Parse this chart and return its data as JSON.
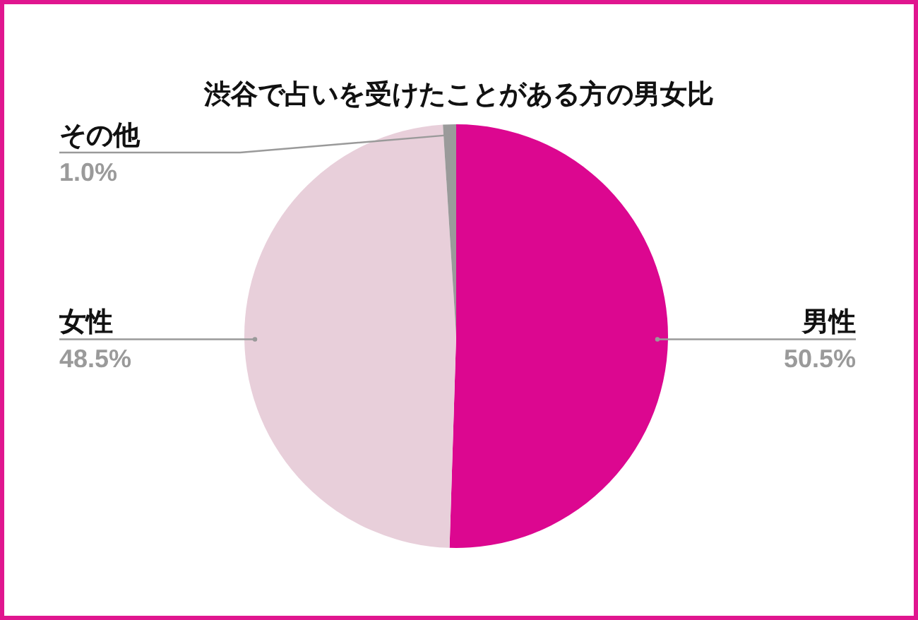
{
  "chart_data": {
    "type": "pie",
    "title": "渋谷で占いを受けたことがある方の男女比",
    "categories": [
      "男性",
      "女性",
      "その他"
    ],
    "values": [
      50.5,
      48.5,
      1.0
    ],
    "colors": [
      "#dc0790",
      "#e8cfda",
      "#9a9a9a"
    ],
    "value_labels": [
      "50.5%",
      "48.5%",
      "1.0%"
    ]
  }
}
